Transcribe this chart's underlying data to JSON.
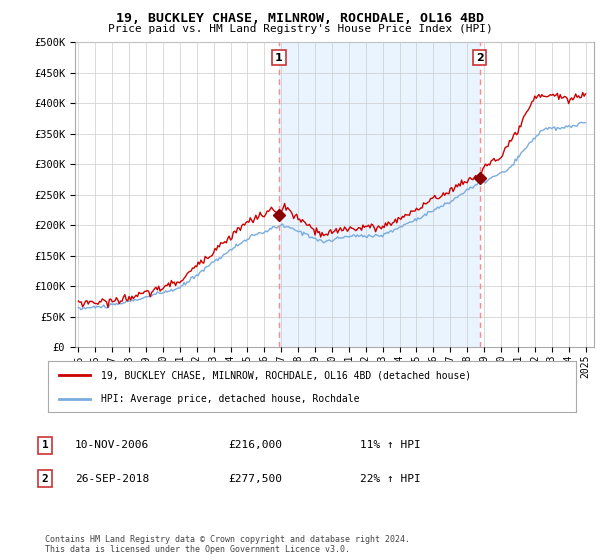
{
  "title": "19, BUCKLEY CHASE, MILNROW, ROCHDALE, OL16 4BD",
  "subtitle": "Price paid vs. HM Land Registry's House Price Index (HPI)",
  "ylabel_ticks": [
    "£0",
    "£50K",
    "£100K",
    "£150K",
    "£200K",
    "£250K",
    "£300K",
    "£350K",
    "£400K",
    "£450K",
    "£500K"
  ],
  "ytick_values": [
    0,
    50000,
    100000,
    150000,
    200000,
    250000,
    300000,
    350000,
    400000,
    450000,
    500000
  ],
  "ylim": [
    0,
    500000
  ],
  "xlim_start": 1994.8,
  "xlim_end": 2025.5,
  "xtick_years": [
    1995,
    1996,
    1997,
    1998,
    1999,
    2000,
    2001,
    2002,
    2003,
    2004,
    2005,
    2006,
    2007,
    2008,
    2009,
    2010,
    2011,
    2012,
    2013,
    2014,
    2015,
    2016,
    2017,
    2018,
    2019,
    2020,
    2021,
    2022,
    2023,
    2024,
    2025
  ],
  "sale1_x": 2006.86,
  "sale1_y": 216000,
  "sale1_label": "1",
  "sale1_date": "10-NOV-2006",
  "sale1_price": "£216,000",
  "sale1_hpi": "11% ↑ HPI",
  "sale2_x": 2018.73,
  "sale2_y": 277500,
  "sale2_label": "2",
  "sale2_date": "26-SEP-2018",
  "sale2_price": "£277,500",
  "sale2_hpi": "22% ↑ HPI",
  "sale_marker_color": "#8B0000",
  "sale_vline_color": "#ff8888",
  "hpi_line_color": "#7aadde",
  "price_line_color": "#cc0000",
  "shading_color": "#ddeeff",
  "legend_red_color": "#cc0000",
  "legend_hpi_color": "#7aadde",
  "footnote": "Contains HM Land Registry data © Crown copyright and database right 2024.\nThis data is licensed under the Open Government Licence v3.0.",
  "background_color": "#ffffff",
  "grid_color": "#cccccc",
  "plot_bg_color": "#ffffff"
}
